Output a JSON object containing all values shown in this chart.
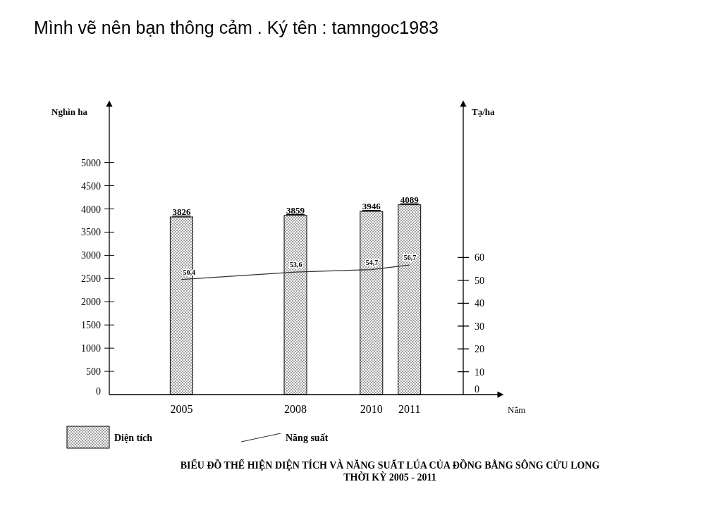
{
  "chart_data": {
    "type": "bar",
    "title": "BIỂU ĐỒ THỂ HIỆN DIỆN TÍCH VÀ NĂNG SUẤT LÚA CỦA ĐỒNG BẰNG SÔNG CỬU LONG THỜI KỲ 2005 - 2011",
    "annotations": [
      "Mình vẽ nên bạn thông cảm . Ký tên : tamngoc1983"
    ],
    "xlabel": "Năm",
    "ylabel": "Nghìn ha",
    "y2label": "Tạ/ha",
    "x": [
      2005,
      2008,
      2010,
      2011
    ],
    "xlim": [
      2003.1,
      2013.4
    ],
    "xticks": [
      2005,
      2008,
      2010,
      2011
    ],
    "ylim": [
      0,
      6300
    ],
    "yticks": [
      0,
      500,
      1000,
      1500,
      2000,
      2500,
      3000,
      3500,
      4000,
      4500,
      5000
    ],
    "y2lim": [
      0,
      128
    ],
    "y2ticks": [
      0,
      10,
      20,
      30,
      40,
      50,
      60
    ],
    "series": [
      {
        "name": "Diện tích",
        "color": "#000000",
        "values": [
          3826,
          3859,
          3946,
          4089
        ],
        "value_labels": [
          "3826",
          "3859",
          "3946",
          "4089"
        ]
      },
      {
        "name": "Năng suất",
        "type": "line",
        "axis": "y2",
        "color": "#333333",
        "values": [
          50.4,
          53.6,
          54.7,
          56.7
        ],
        "value_labels": [
          "50,4",
          "53,6",
          "54,7",
          "56,7"
        ]
      }
    ],
    "legend": "bottom",
    "grid": false,
    "marker": "none",
    "line_style": "solid"
  }
}
